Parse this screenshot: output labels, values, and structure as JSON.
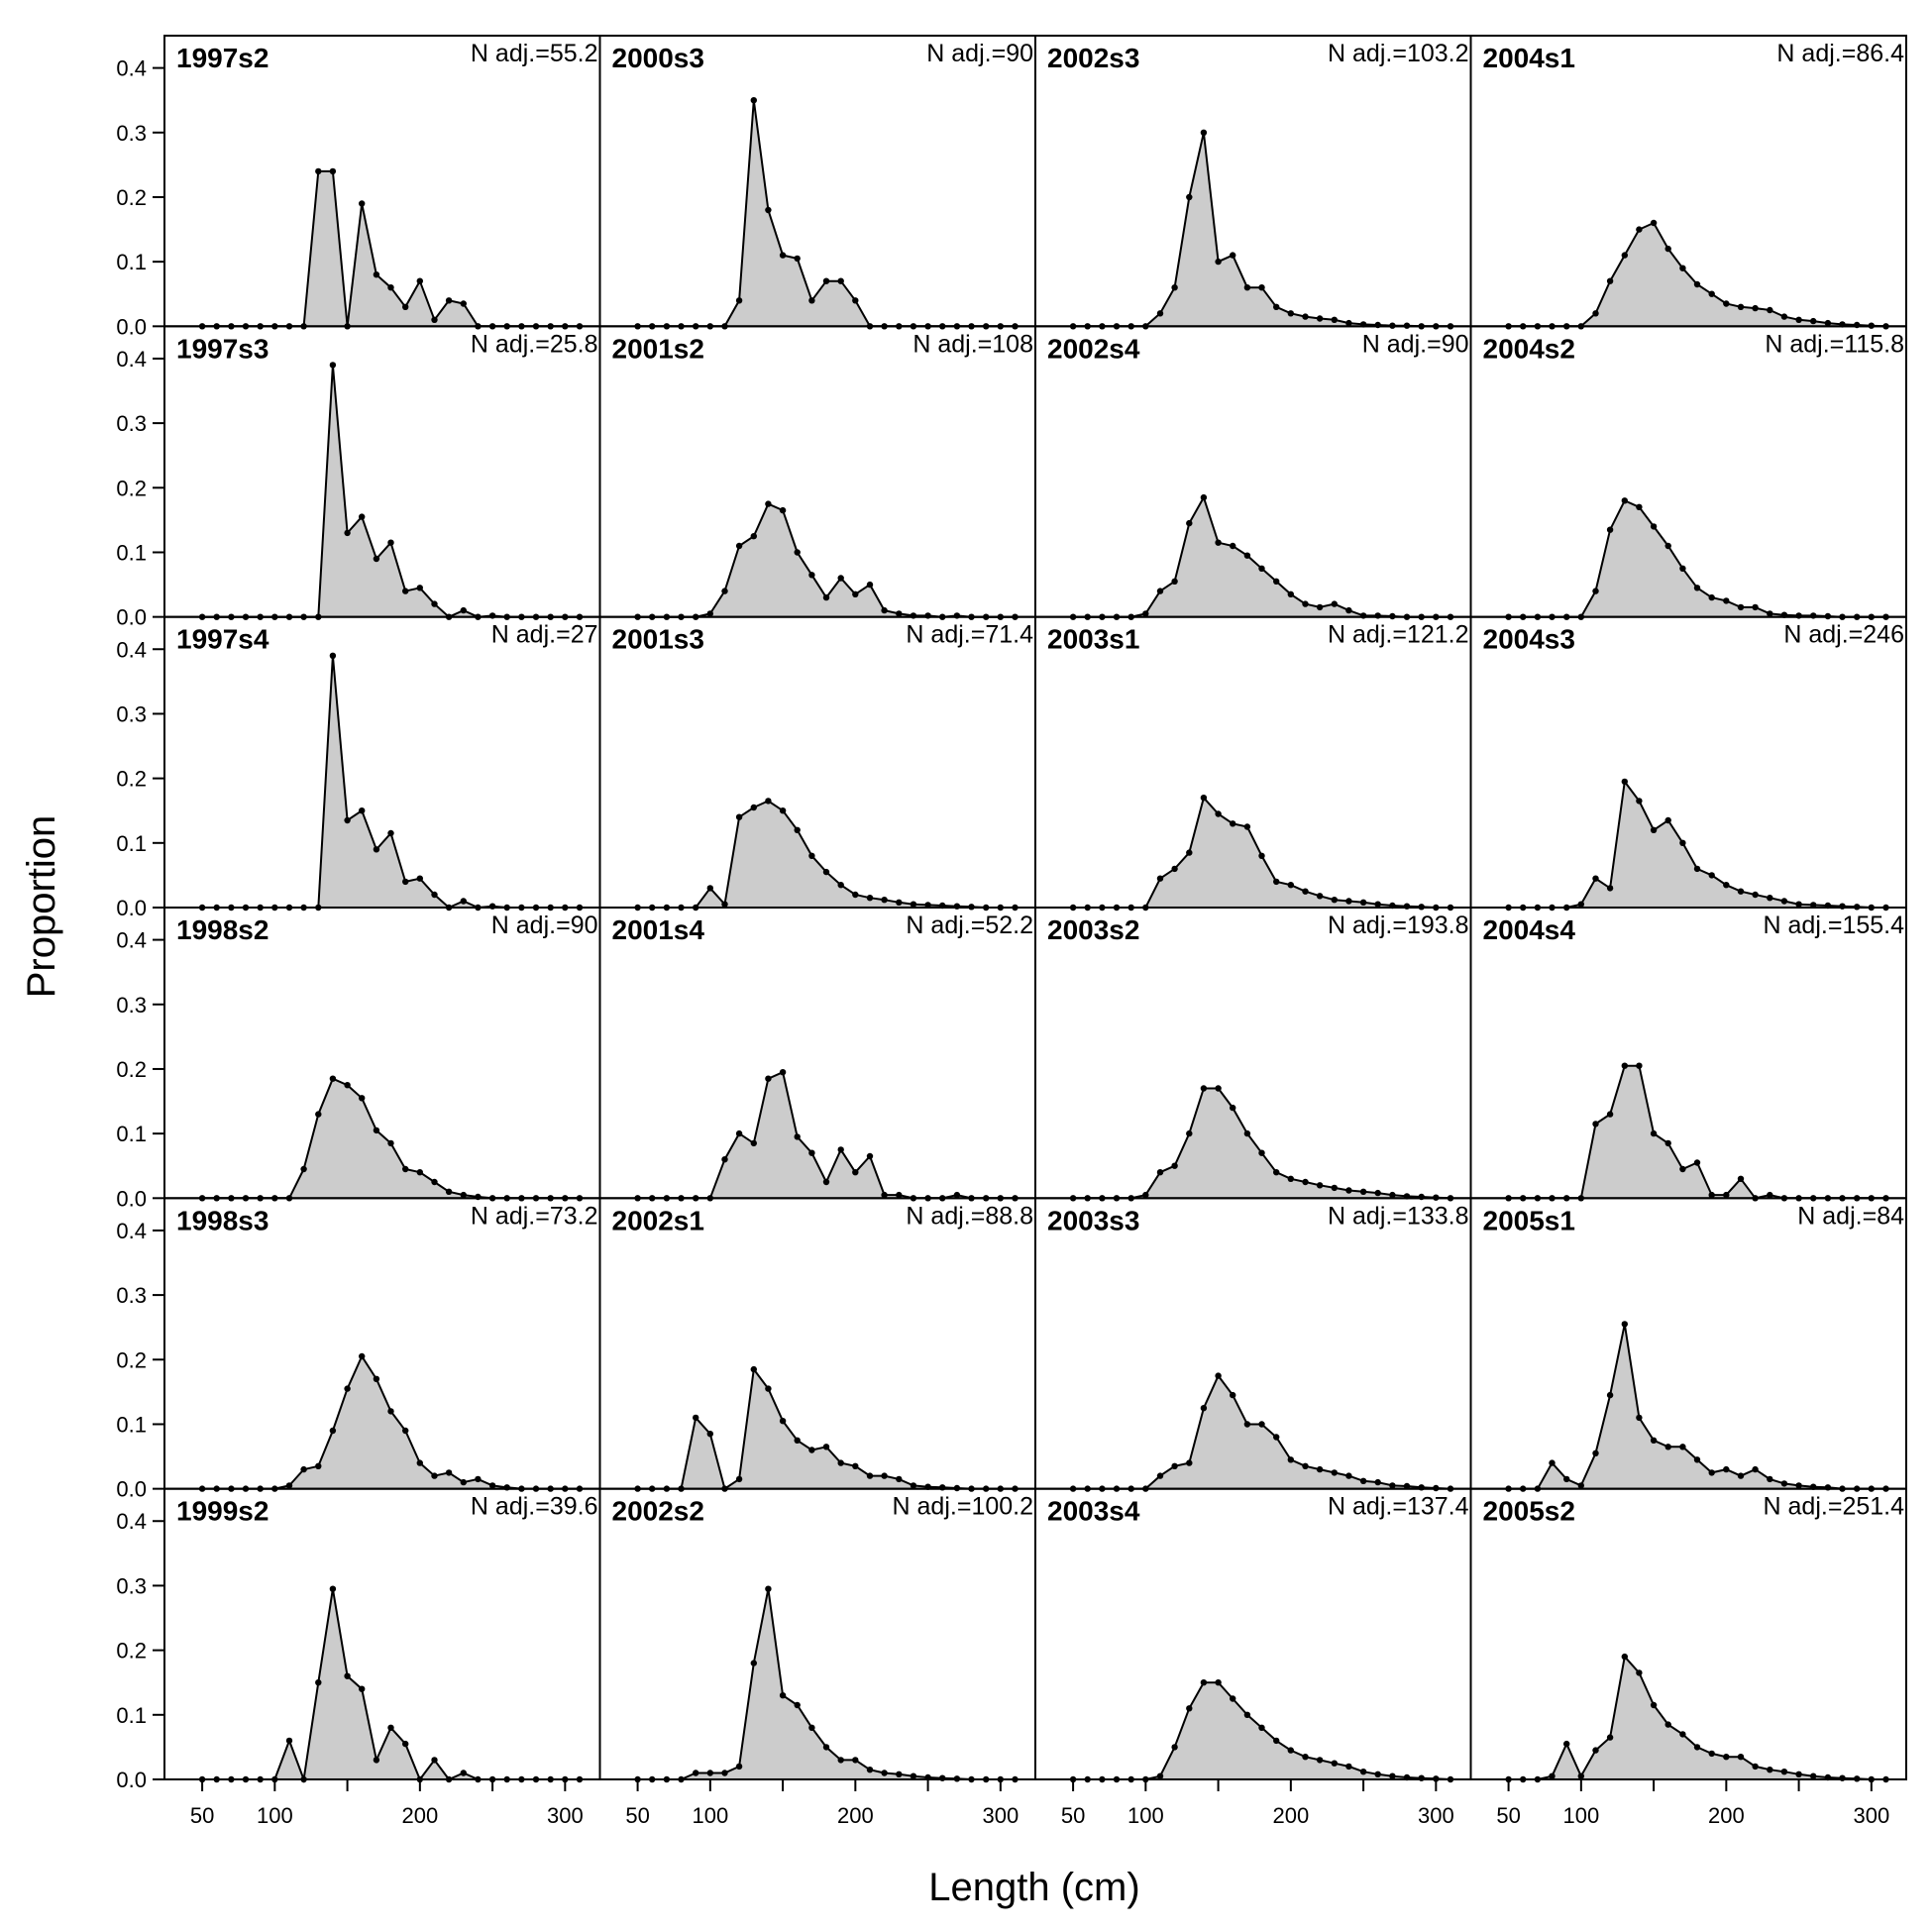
{
  "chart_data": {
    "type": "area",
    "xlabel": "Length (cm)",
    "ylabel": "Proportion",
    "x_ticks": [
      50,
      100,
      200,
      300
    ],
    "y_ticks": [
      "0.0",
      "0.1",
      "0.2",
      "0.3",
      "0.4"
    ],
    "xlim": [
      24,
      324
    ],
    "ylim": [
      0,
      0.45
    ],
    "fill_color": "#cccccc",
    "line_color": "#000000",
    "bins": [
      50,
      60,
      70,
      80,
      90,
      100,
      110,
      120,
      130,
      140,
      150,
      160,
      170,
      180,
      190,
      200,
      210,
      220,
      230,
      240,
      250,
      260,
      270,
      280,
      290,
      300,
      310
    ],
    "panels": [
      {
        "title": "1997s2",
        "n": "N adj.=55.2",
        "values": [
          0,
          0,
          0,
          0,
          0,
          0,
          0,
          0,
          0.24,
          0.24,
          0,
          0.19,
          0.08,
          0.06,
          0.03,
          0.07,
          0.01,
          0.04,
          0.035,
          0,
          0,
          0,
          0,
          0,
          0,
          0,
          0
        ]
      },
      {
        "title": "2000s3",
        "n": "N adj.=90",
        "values": [
          0,
          0,
          0,
          0,
          0,
          0,
          0,
          0.04,
          0.35,
          0.18,
          0.11,
          0.105,
          0.04,
          0.07,
          0.07,
          0.04,
          0,
          0,
          0,
          0,
          0,
          0,
          0,
          0,
          0,
          0,
          0
        ]
      },
      {
        "title": "2002s3",
        "n": "N adj.=103.2",
        "values": [
          0,
          0,
          0,
          0,
          0,
          0,
          0.02,
          0.06,
          0.2,
          0.3,
          0.1,
          0.11,
          0.06,
          0.06,
          0.03,
          0.02,
          0.015,
          0.012,
          0.01,
          0.005,
          0.003,
          0.002,
          0.001,
          0.001,
          0,
          0,
          0
        ]
      },
      {
        "title": "2004s1",
        "n": "N adj.=86.4",
        "values": [
          0,
          0,
          0,
          0,
          0,
          0,
          0.02,
          0.07,
          0.11,
          0.15,
          0.16,
          0.12,
          0.09,
          0.065,
          0.05,
          0.035,
          0.03,
          0.028,
          0.025,
          0.015,
          0.01,
          0.008,
          0.005,
          0.003,
          0.002,
          0.001,
          0
        ]
      },
      {
        "title": "1997s3",
        "n": "N adj.=25.8",
        "values": [
          0,
          0,
          0,
          0,
          0,
          0,
          0,
          0,
          0,
          0.39,
          0.13,
          0.155,
          0.09,
          0.115,
          0.04,
          0.045,
          0.02,
          0,
          0.01,
          0,
          0.002,
          0,
          0,
          0,
          0,
          0,
          0
        ]
      },
      {
        "title": "2001s2",
        "n": "N adj.=108",
        "values": [
          0,
          0,
          0,
          0,
          0,
          0.005,
          0.04,
          0.11,
          0.125,
          0.175,
          0.165,
          0.1,
          0.065,
          0.03,
          0.06,
          0.035,
          0.05,
          0.01,
          0.005,
          0.002,
          0.002,
          0,
          0.002,
          0,
          0,
          0,
          0
        ]
      },
      {
        "title": "2002s4",
        "n": "N adj.=90",
        "values": [
          0,
          0,
          0,
          0,
          0,
          0.005,
          0.04,
          0.055,
          0.145,
          0.185,
          0.115,
          0.11,
          0.095,
          0.075,
          0.055,
          0.035,
          0.02,
          0.015,
          0.02,
          0.01,
          0.002,
          0.002,
          0.001,
          0,
          0,
          0,
          0
        ]
      },
      {
        "title": "2004s2",
        "n": "N adj.=115.8",
        "values": [
          0,
          0,
          0,
          0,
          0,
          0,
          0.04,
          0.135,
          0.18,
          0.17,
          0.14,
          0.11,
          0.075,
          0.045,
          0.03,
          0.025,
          0.015,
          0.015,
          0.005,
          0.003,
          0.002,
          0.002,
          0.001,
          0,
          0,
          0,
          0
        ]
      },
      {
        "title": "1997s4",
        "n": "N adj.=27",
        "values": [
          0,
          0,
          0,
          0,
          0,
          0,
          0,
          0,
          0,
          0.39,
          0.135,
          0.15,
          0.09,
          0.115,
          0.04,
          0.045,
          0.02,
          0,
          0.01,
          0,
          0.002,
          0,
          0,
          0,
          0,
          0,
          0
        ]
      },
      {
        "title": "2001s3",
        "n": "N adj.=71.4",
        "values": [
          0,
          0,
          0,
          0,
          0,
          0.03,
          0.005,
          0.14,
          0.155,
          0.165,
          0.15,
          0.12,
          0.08,
          0.055,
          0.035,
          0.02,
          0.015,
          0.012,
          0.008,
          0.005,
          0.004,
          0.003,
          0.002,
          0.001,
          0,
          0,
          0
        ]
      },
      {
        "title": "2003s1",
        "n": "N adj.=121.2",
        "values": [
          0,
          0,
          0,
          0,
          0,
          0,
          0.045,
          0.06,
          0.085,
          0.17,
          0.145,
          0.13,
          0.125,
          0.08,
          0.04,
          0.035,
          0.025,
          0.018,
          0.012,
          0.01,
          0.008,
          0.005,
          0.003,
          0.002,
          0.001,
          0,
          0
        ]
      },
      {
        "title": "2004s3",
        "n": "N adj.=246",
        "values": [
          0,
          0,
          0,
          0,
          0,
          0.005,
          0.045,
          0.03,
          0.195,
          0.165,
          0.12,
          0.135,
          0.1,
          0.06,
          0.05,
          0.035,
          0.025,
          0.02,
          0.015,
          0.01,
          0.005,
          0.004,
          0.003,
          0.002,
          0.001,
          0,
          0
        ]
      },
      {
        "title": "1998s2",
        "n": "N adj.=90",
        "values": [
          0,
          0,
          0,
          0,
          0,
          0,
          0,
          0.045,
          0.13,
          0.185,
          0.175,
          0.155,
          0.105,
          0.085,
          0.045,
          0.04,
          0.025,
          0.01,
          0.005,
          0.002,
          0,
          0,
          0,
          0,
          0,
          0,
          0
        ]
      },
      {
        "title": "2001s4",
        "n": "N adj.=52.2",
        "values": [
          0,
          0,
          0,
          0,
          0,
          0,
          0.06,
          0.1,
          0.085,
          0.185,
          0.195,
          0.095,
          0.07,
          0.025,
          0.075,
          0.04,
          0.065,
          0.005,
          0.005,
          0,
          0,
          0,
          0.005,
          0,
          0,
          0,
          0
        ]
      },
      {
        "title": "2003s2",
        "n": "N adj.=193.8",
        "values": [
          0,
          0,
          0,
          0,
          0,
          0.005,
          0.04,
          0.05,
          0.1,
          0.17,
          0.17,
          0.14,
          0.1,
          0.07,
          0.04,
          0.03,
          0.025,
          0.02,
          0.016,
          0.012,
          0.01,
          0.008,
          0.005,
          0.003,
          0.002,
          0.001,
          0
        ]
      },
      {
        "title": "2004s4",
        "n": "N adj.=155.4",
        "values": [
          0,
          0,
          0,
          0,
          0,
          0,
          0.115,
          0.13,
          0.205,
          0.205,
          0.1,
          0.085,
          0.045,
          0.055,
          0.005,
          0.005,
          0.03,
          0,
          0.005,
          0,
          0,
          0,
          0,
          0,
          0,
          0,
          0
        ]
      },
      {
        "title": "1998s3",
        "n": "N adj.=73.2",
        "values": [
          0,
          0,
          0,
          0,
          0,
          0,
          0.005,
          0.03,
          0.035,
          0.09,
          0.155,
          0.205,
          0.17,
          0.12,
          0.09,
          0.04,
          0.02,
          0.025,
          0.01,
          0.015,
          0.005,
          0.002,
          0,
          0,
          0,
          0,
          0
        ]
      },
      {
        "title": "2002s1",
        "n": "N adj.=88.8",
        "values": [
          0,
          0,
          0,
          0,
          0.11,
          0.085,
          0,
          0.015,
          0.185,
          0.155,
          0.105,
          0.075,
          0.06,
          0.065,
          0.04,
          0.035,
          0.02,
          0.02,
          0.015,
          0.005,
          0.003,
          0.002,
          0.001,
          0,
          0,
          0,
          0
        ]
      },
      {
        "title": "2003s3",
        "n": "N adj.=133.8",
        "values": [
          0,
          0,
          0,
          0,
          0,
          0,
          0.02,
          0.035,
          0.04,
          0.125,
          0.175,
          0.145,
          0.1,
          0.1,
          0.08,
          0.045,
          0.035,
          0.03,
          0.025,
          0.02,
          0.012,
          0.01,
          0.005,
          0.004,
          0.002,
          0.001,
          0
        ]
      },
      {
        "title": "2005s1",
        "n": "N adj.=84",
        "values": [
          0,
          0,
          0,
          0.04,
          0.015,
          0.005,
          0.055,
          0.145,
          0.255,
          0.11,
          0.075,
          0.065,
          0.065,
          0.045,
          0.025,
          0.03,
          0.02,
          0.03,
          0.015,
          0.008,
          0.005,
          0.003,
          0.002,
          0,
          0,
          0,
          0
        ]
      },
      {
        "title": "1999s2",
        "n": "N adj.=39.6",
        "values": [
          0,
          0,
          0,
          0,
          0,
          0,
          0.06,
          0,
          0.15,
          0.295,
          0.16,
          0.14,
          0.03,
          0.08,
          0.055,
          0,
          0.03,
          0,
          0.01,
          0,
          0,
          0,
          0,
          0,
          0,
          0,
          0
        ]
      },
      {
        "title": "2002s2",
        "n": "N adj.=100.2",
        "values": [
          0,
          0,
          0,
          0,
          0.01,
          0.01,
          0.01,
          0.02,
          0.18,
          0.295,
          0.13,
          0.115,
          0.08,
          0.05,
          0.03,
          0.03,
          0.015,
          0.01,
          0.008,
          0.005,
          0.003,
          0.002,
          0.001,
          0,
          0,
          0,
          0
        ]
      },
      {
        "title": "2003s4",
        "n": "N adj.=137.4",
        "values": [
          0,
          0,
          0,
          0,
          0,
          0,
          0.005,
          0.05,
          0.11,
          0.15,
          0.15,
          0.125,
          0.1,
          0.08,
          0.06,
          0.045,
          0.035,
          0.03,
          0.025,
          0.02,
          0.012,
          0.008,
          0.005,
          0.003,
          0.002,
          0.001,
          0
        ]
      },
      {
        "title": "2005s2",
        "n": "N adj.=251.4",
        "values": [
          0,
          0,
          0,
          0.005,
          0.055,
          0.005,
          0.045,
          0.065,
          0.19,
          0.165,
          0.115,
          0.085,
          0.07,
          0.05,
          0.04,
          0.035,
          0.035,
          0.02,
          0.015,
          0.012,
          0.008,
          0.005,
          0.003,
          0.002,
          0.001,
          0,
          0
        ]
      }
    ]
  }
}
